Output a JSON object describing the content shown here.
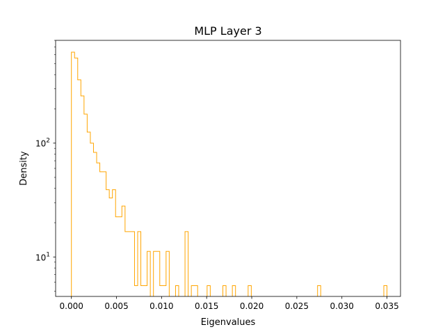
{
  "chart_data": {
    "type": "histogram",
    "title": "MLP Layer 3",
    "xlabel": "Eigenvalues",
    "ylabel": "Density",
    "y_scale": "log",
    "histtype": "step",
    "color": "#ffa500",
    "xlim": [
      -0.00175,
      0.0365
    ],
    "ylim": [
      4.5,
      800
    ],
    "x_ticks": [
      0.0,
      0.005,
      0.01,
      0.015,
      0.02,
      0.025,
      0.03,
      0.035
    ],
    "x_tick_labels": [
      "0.000",
      "0.005",
      "0.010",
      "0.015",
      "0.020",
      "0.025",
      "0.030",
      "0.035"
    ],
    "y_ticks": [
      {
        "value": 10,
        "base": "10",
        "exp": "1"
      },
      {
        "value": 100,
        "base": "10",
        "exp": "2"
      }
    ],
    "bin_edges": [
      0,
      0.00035,
      0.0007,
      0.00105,
      0.0014,
      0.00175,
      0.0021,
      0.00245,
      0.0028,
      0.00315,
      0.0035,
      0.00385,
      0.0042,
      0.00455,
      0.0049,
      0.00525,
      0.0056,
      0.00595,
      0.0063,
      0.00665,
      0.007,
      0.00735,
      0.0077,
      0.00805,
      0.0084,
      0.00875,
      0.0091,
      0.00945,
      0.0098,
      0.01015,
      0.0105,
      0.01085,
      0.0112,
      0.01155,
      0.0119,
      0.01225,
      0.0126,
      0.01295,
      0.0133,
      0.01365,
      0.014,
      0.01435,
      0.0147,
      0.01505,
      0.0154,
      0.01575,
      0.0161,
      0.01645,
      0.0168,
      0.01715,
      0.0175,
      0.01785,
      0.0182,
      0.01855,
      0.0189,
      0.01925,
      0.0196,
      0.01995,
      0.0203,
      0.02065,
      0.021,
      0.02135,
      0.0217,
      0.02205,
      0.0224,
      0.02275,
      0.0231,
      0.02345,
      0.0238,
      0.02415,
      0.0245,
      0.02485,
      0.0252,
      0.02555,
      0.0259,
      0.02625,
      0.0266,
      0.02695,
      0.0273,
      0.02765,
      0.028,
      0.02835,
      0.0287,
      0.02905,
      0.0294,
      0.02975,
      0.0301,
      0.03045,
      0.0308,
      0.03115,
      0.0315,
      0.03185,
      0.0322,
      0.03255,
      0.0329,
      0.03325,
      0.0336,
      0.03395,
      0.0343,
      0.03465,
      0.035
    ],
    "densities": [
      630,
      560,
      360,
      260,
      180,
      125,
      100,
      83,
      67,
      56,
      56,
      39,
      33,
      39,
      22.5,
      22.5,
      28,
      16.7,
      16.7,
      16.7,
      5.6,
      16.7,
      5.6,
      5.6,
      11.2,
      0,
      11.2,
      11.2,
      5.6,
      5.6,
      11.2,
      0,
      0,
      5.6,
      0,
      0,
      16.7,
      0,
      5.6,
      5.6,
      0,
      0,
      0,
      5.6,
      0,
      0,
      0,
      0,
      5.6,
      0,
      0,
      5.6,
      0,
      0,
      0,
      0,
      5.6,
      0,
      0,
      0,
      0,
      0,
      0,
      0,
      0,
      0,
      0,
      0,
      0,
      0,
      0,
      0,
      0,
      0,
      0,
      0,
      0,
      0,
      5.6,
      0,
      0,
      0,
      0,
      0,
      0,
      0,
      0,
      0,
      0,
      0,
      0,
      0,
      0,
      0,
      0,
      0,
      0,
      0,
      0,
      5.6
    ]
  }
}
